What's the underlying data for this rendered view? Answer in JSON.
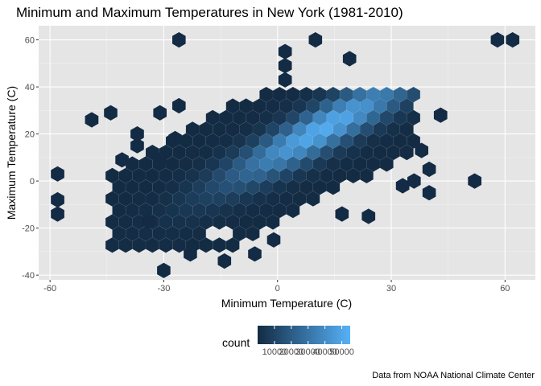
{
  "chart_data": {
    "type": "hexbin",
    "title": "Minimum and Maximum Temperatures in New York (1981-2010)",
    "xlabel": "Minimum Temperature (C)",
    "ylabel": "Maximum Temperature (C)",
    "caption": "Data from NOAA National Climate Center",
    "xlim": [
      -63,
      68
    ],
    "ylim": [
      -42,
      66
    ],
    "x_ticks": [
      -60,
      -30,
      0,
      30,
      60
    ],
    "x_tick_labels": [
      "-60",
      "-30",
      "0",
      "30",
      "60"
    ],
    "y_ticks": [
      -40,
      -20,
      0,
      20,
      40,
      60
    ],
    "y_tick_labels": [
      "-40",
      "-20",
      "0",
      "20",
      "40",
      "60"
    ],
    "grid": true,
    "panel_background": "#e5e5e5",
    "legend": {
      "title": "count",
      "position": "bottom",
      "min": 0,
      "max": 55000,
      "breaks": [
        10000,
        20000,
        30000,
        40000,
        50000
      ],
      "break_labels": [
        "10000",
        "20000",
        "30000",
        "40000",
        "50000"
      ],
      "low_color": "#132b43",
      "high_color": "#56b1f7"
    },
    "main_cluster": {
      "x_range": [
        -45,
        37
      ],
      "y_range": [
        -30,
        40
      ],
      "slope": 0.85,
      "intercept": 12,
      "band": 12,
      "peak": [
        12,
        23
      ],
      "peak_count": 52000
    },
    "holes": [
      [
        -14,
        -20
      ]
    ],
    "outliers": [
      [
        -26,
        60
      ],
      [
        10,
        60
      ],
      [
        58,
        60
      ],
      [
        62,
        60
      ],
      [
        2,
        55
      ],
      [
        19,
        52
      ],
      [
        2,
        49
      ],
      [
        2,
        43
      ],
      [
        -49,
        26
      ],
      [
        -44,
        29
      ],
      [
        -31,
        29
      ],
      [
        -26,
        32
      ],
      [
        -37,
        20
      ],
      [
        -37,
        15
      ],
      [
        -27,
        18
      ],
      [
        -31,
        9
      ],
      [
        -41,
        9
      ],
      [
        -58,
        3
      ],
      [
        -58,
        -8
      ],
      [
        -58,
        -14
      ],
      [
        40,
        5
      ],
      [
        36,
        0
      ],
      [
        52,
        0
      ],
      [
        40,
        -5
      ],
      [
        33,
        -2
      ],
      [
        43,
        28
      ],
      [
        38,
        13
      ],
      [
        24,
        -15
      ],
      [
        17,
        -14
      ],
      [
        -30,
        -38
      ],
      [
        -23,
        -31
      ],
      [
        -14,
        -34
      ],
      [
        -6,
        -31
      ],
      [
        -1,
        -25
      ],
      [
        -34,
        -17
      ]
    ]
  }
}
